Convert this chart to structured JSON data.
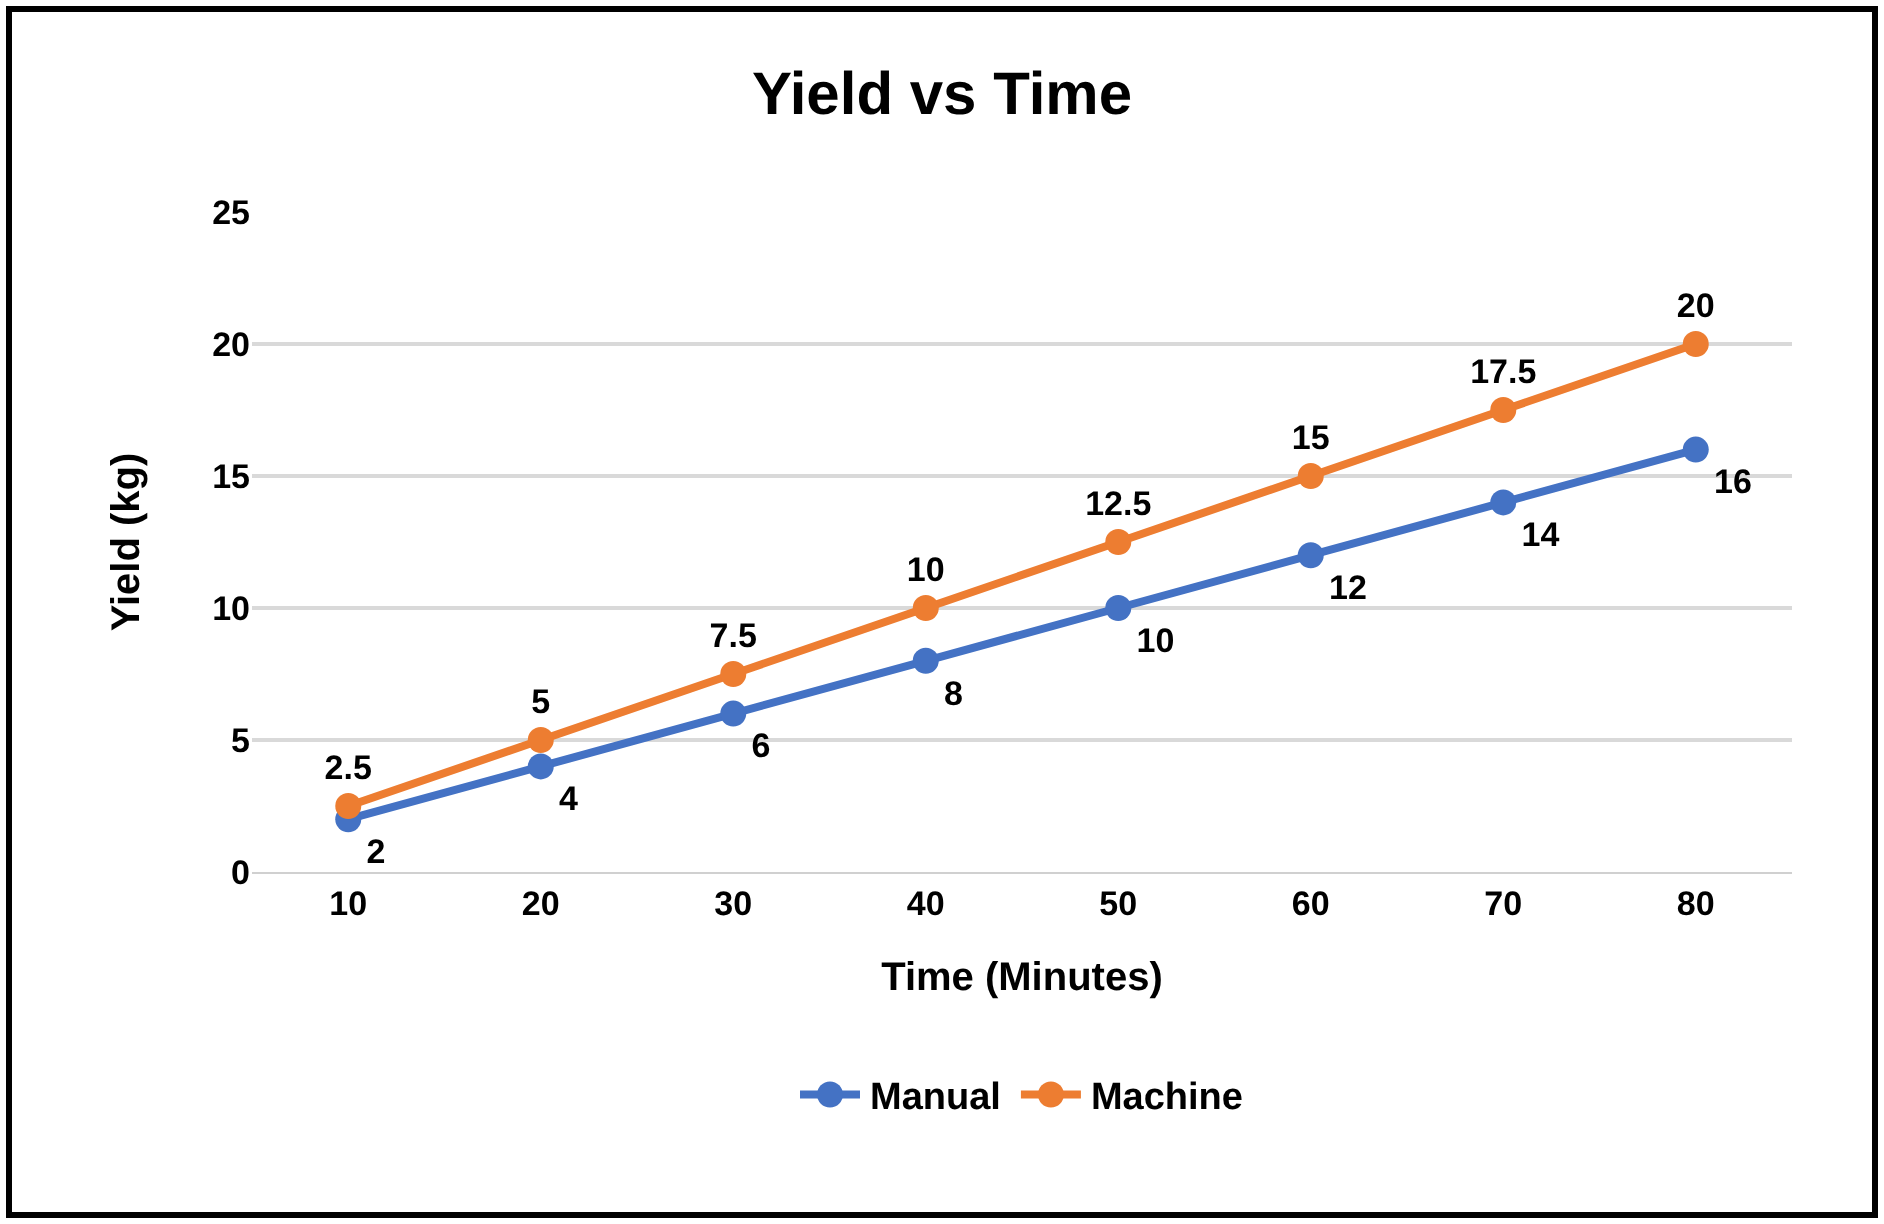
{
  "chart_data": {
    "type": "line",
    "title": "Yield vs Time",
    "xlabel": "Time (Minutes)",
    "ylabel": "Yield (kg)",
    "categories": [
      "10",
      "20",
      "30",
      "40",
      "50",
      "60",
      "70",
      "80"
    ],
    "series": [
      {
        "name": "Manual",
        "color": "#4472c4",
        "values": [
          2,
          4,
          6,
          8,
          10,
          12,
          14,
          16
        ]
      },
      {
        "name": "Machine",
        "color": "#ed7d31",
        "values": [
          2.5,
          5,
          7.5,
          10,
          12.5,
          15,
          17.5,
          20
        ]
      }
    ],
    "ylim": [
      0,
      25
    ],
    "yticks": [
      0,
      5,
      10,
      15,
      20,
      25
    ],
    "grid": "y",
    "legend": "bottom",
    "marker": "circle",
    "line_style": "solid",
    "data_labels": true
  }
}
